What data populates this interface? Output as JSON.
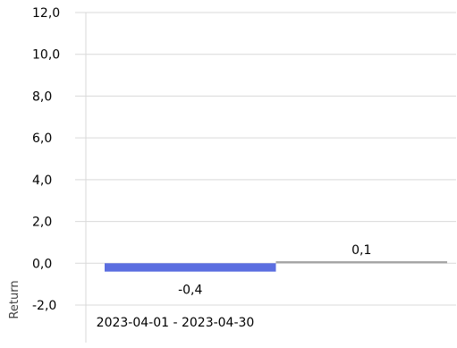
{
  "chart_data": {
    "type": "bar",
    "categories": [
      "2023-04-01 - 2023-04-30"
    ],
    "series": [
      {
        "values": [
          -0.4
        ],
        "color": "#5b6ee0"
      },
      {
        "values": [
          0.1
        ],
        "color": "#a6a6a6"
      }
    ],
    "data_labels": [
      "-0,4",
      "0,1"
    ],
    "ylabel": "Return",
    "ylim": [
      -2.0,
      12.0
    ],
    "yticks": [
      12.0,
      10.0,
      8.0,
      6.0,
      4.0,
      2.0,
      0.0,
      -2.0
    ],
    "ytick_labels": [
      "12,0",
      "10,0",
      "8,0",
      "6,0",
      "4,0",
      "2,0",
      "0,0",
      "-2,0"
    ],
    "grid": true,
    "gridline_color": "#d9d9d9",
    "legend": "none"
  }
}
